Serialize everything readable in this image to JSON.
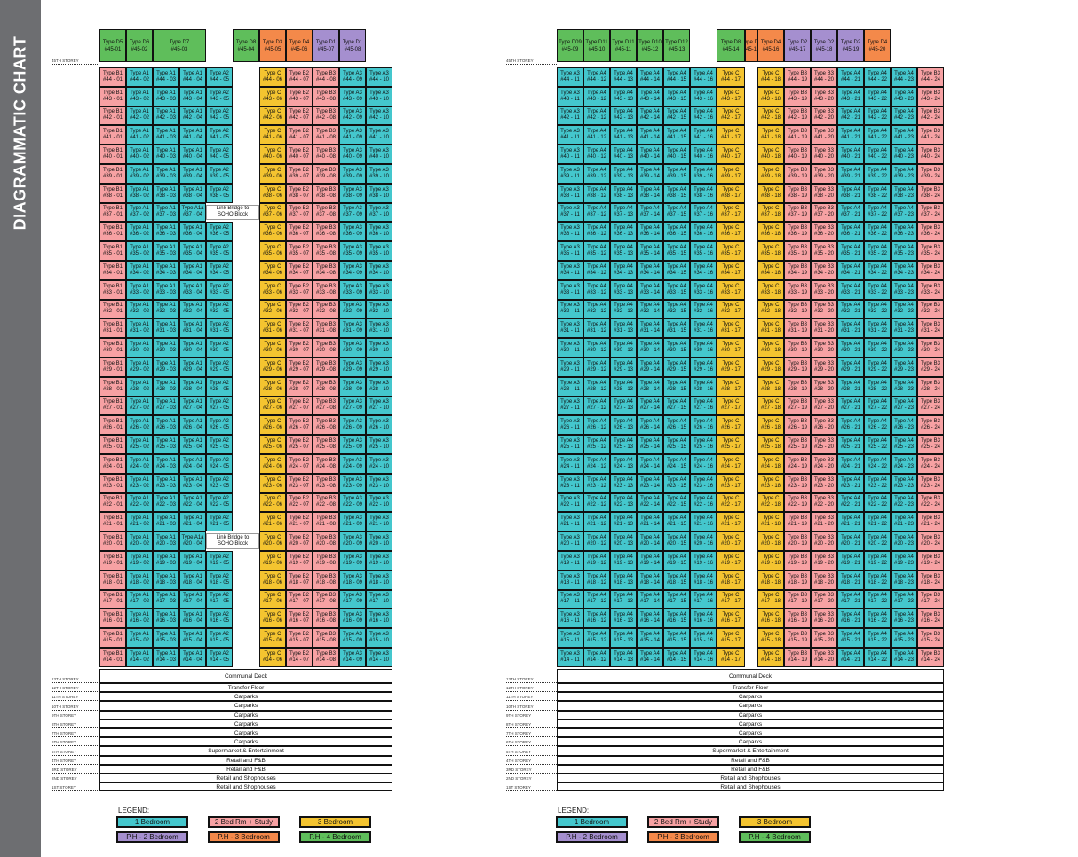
{
  "title": "DIAGRAMMATIC CHART",
  "colors": {
    "c1": "#44c7cd",
    "c2": "#f7a1a3",
    "c3": "#f4c430",
    "cPH2": "#a58fcf",
    "cPH3": "#f4894a",
    "cPH4": "#5fbe5b"
  },
  "legend": {
    "title": "LEGEND:",
    "items": [
      {
        "label": "1 Bedroom",
        "color": "#44c7cd"
      },
      {
        "label": "2 Bed Rm + Study",
        "color": "#f7a1a3"
      },
      {
        "label": "3 Bedroom",
        "color": "#f4c430"
      },
      {
        "label": "P.H - 2 Bedroom",
        "color": "#a58fcf"
      },
      {
        "label": "P.H - 3 Bedroom",
        "color": "#f4894a"
      },
      {
        "label": "P.H - 4 Bedroom",
        "color": "#5fbe5b"
      }
    ]
  },
  "floors": [
    44,
    43,
    42,
    41,
    40,
    39,
    38,
    37,
    36,
    35,
    34,
    33,
    32,
    31,
    30,
    29,
    28,
    27,
    26,
    25,
    24,
    23,
    22,
    21,
    20,
    19,
    18,
    17,
    16,
    15,
    14
  ],
  "top_storey_label": "45TH STOREY",
  "link_bridge": {
    "floors": [
      37,
      20
    ],
    "line1": "Link Bridge to",
    "line2": "SOHO Block",
    "type": "Type A1a"
  },
  "podium": [
    {
      "storey": "13TH STOREY",
      "label": "Communal Deck"
    },
    {
      "storey": "12TH STOREY",
      "label": "Transfer Floor"
    },
    {
      "storey": "11TH STOREY",
      "label": "Carparks"
    },
    {
      "storey": "10TH STOREY",
      "label": "Carparks"
    },
    {
      "storey": "9TH STOREY",
      "label": "Carparks"
    },
    {
      "storey": "8TH STOREY",
      "label": "Carparks"
    },
    {
      "storey": "7TH STOREY",
      "label": "Carparks"
    },
    {
      "storey": "6TH STOREY",
      "label": "Carparks"
    },
    {
      "storey": "5TH STOREY",
      "label": "Supermarket & Entertainment"
    },
    {
      "storey": "4TH STOREY",
      "label": "Retail and F&B"
    },
    {
      "storey": "3RD STOREY",
      "label": "Retail and F&B"
    },
    {
      "storey": "2ND STOREY",
      "label": "Retail and Shophouses"
    },
    {
      "storey": "1ST STOREY",
      "label": "Retail and Shophouses"
    }
  ],
  "blocks": [
    {
      "headers": [
        {
          "type": "Type D5",
          "unit": "#45-01",
          "span": 1,
          "color": "#5fbe5b"
        },
        {
          "type": "Type D6",
          "unit": "#45-02",
          "span": 1,
          "color": "#5fbe5b"
        },
        {
          "type": "Type D7",
          "unit": "#45-03",
          "span": 2,
          "color": "#5fbe5b"
        },
        {
          "gap": true
        },
        {
          "type": "Type D8",
          "unit": "#45-04",
          "span": 1,
          "color": "#5fbe5b"
        },
        {
          "type": "Type D3",
          "unit": "#45-05",
          "span": 1,
          "color": "#f4894a"
        },
        {
          "type": "Type D4",
          "unit": "#45-06",
          "span": 1,
          "color": "#f4894a"
        },
        {
          "type": "Type D1",
          "unit": "#45-07",
          "span": 1,
          "color": "#a58fcf"
        },
        {
          "type": "Type D1",
          "unit": "#45-08",
          "span": 1,
          "color": "#a58fcf"
        }
      ],
      "columns": [
        {
          "unit": "01",
          "type": "Type B1",
          "color": "#f7a1a3"
        },
        {
          "unit": "02",
          "type": "Type A1",
          "color": "#44c7cd"
        },
        {
          "unit": "03",
          "type": "Type A1",
          "color": "#44c7cd"
        },
        {
          "unit": "04",
          "type": "Type A1",
          "color": "#44c7cd"
        },
        {
          "unit": "05",
          "type": "Type A2",
          "color": "#44c7cd"
        },
        {
          "gap": true
        },
        {
          "unit": "06",
          "type": "Type C",
          "color": "#f4c430"
        },
        {
          "unit": "07",
          "type": "Type B2",
          "color": "#f7a1a3"
        },
        {
          "unit": "08",
          "type": "Type B3",
          "color": "#f7a1a3"
        },
        {
          "unit": "09",
          "type": "Type A3",
          "color": "#44c7cd"
        },
        {
          "unit": "10",
          "type": "Type A3",
          "color": "#44c7cd"
        }
      ]
    },
    {
      "headers": [
        {
          "type": "Type D09",
          "unit": "#45-09",
          "span": 1,
          "color": "#5fbe5b"
        },
        {
          "type": "Type D11",
          "unit": "#45-10",
          "span": 1,
          "color": "#5fbe5b"
        },
        {
          "type": "Type D11",
          "unit": "#45-11",
          "span": 1,
          "color": "#5fbe5b"
        },
        {
          "type": "Type D10",
          "unit": "#45-12",
          "span": 1,
          "color": "#5fbe5b"
        },
        {
          "type": "Type D12",
          "unit": "#45-13",
          "span": 1,
          "color": "#5fbe5b"
        },
        {
          "gap": true
        },
        {
          "type": "Type D8",
          "unit": "#45-14",
          "span": 1,
          "color": "#5fbe5b"
        },
        {
          "type": "Type D4",
          "unit": "#45-15",
          "span": 1,
          "color": "#f4894a"
        },
        {
          "type": "Type D4",
          "unit": "#45-16",
          "span": 1,
          "color": "#f4894a"
        },
        {
          "type": "Type D2",
          "unit": "#45-17",
          "span": 1,
          "color": "#a58fcf"
        },
        {
          "type": "Type D2",
          "unit": "#45-18",
          "span": 1,
          "color": "#a58fcf"
        },
        {
          "type": "Type D2",
          "unit": "#45-19",
          "span": 1,
          "color": "#a58fcf"
        },
        {
          "type": "Type D4",
          "unit": "#45-20",
          "span": 1,
          "color": "#f4894a"
        }
      ],
      "columns": [
        {
          "unit": "11",
          "type": "Type A3",
          "color": "#44c7cd"
        },
        {
          "unit": "12",
          "type": "Type A4",
          "color": "#44c7cd"
        },
        {
          "unit": "13",
          "type": "Type A4",
          "color": "#44c7cd"
        },
        {
          "unit": "14",
          "type": "Type A4",
          "color": "#44c7cd"
        },
        {
          "unit": "15",
          "type": "Type A4",
          "color": "#44c7cd"
        },
        {
          "unit": "16",
          "type": "Type A4",
          "color": "#44c7cd"
        },
        {
          "unit": "17",
          "type": "Type C",
          "color": "#f4c430"
        },
        {
          "gap": true
        },
        {
          "unit": "18",
          "type": "Type C",
          "color": "#f4c430"
        },
        {
          "unit": "19",
          "type": "Type B3",
          "color": "#f7a1a3"
        },
        {
          "unit": "20",
          "type": "Type B3",
          "color": "#f7a1a3"
        },
        {
          "unit": "21",
          "type": "Type A4",
          "color": "#44c7cd"
        },
        {
          "unit": "22",
          "type": "Type A4",
          "color": "#44c7cd"
        },
        {
          "unit": "23",
          "type": "Type A4",
          "color": "#44c7cd"
        },
        {
          "unit": "24",
          "type": "Type B3",
          "color": "#f7a1a3"
        }
      ]
    }
  ]
}
